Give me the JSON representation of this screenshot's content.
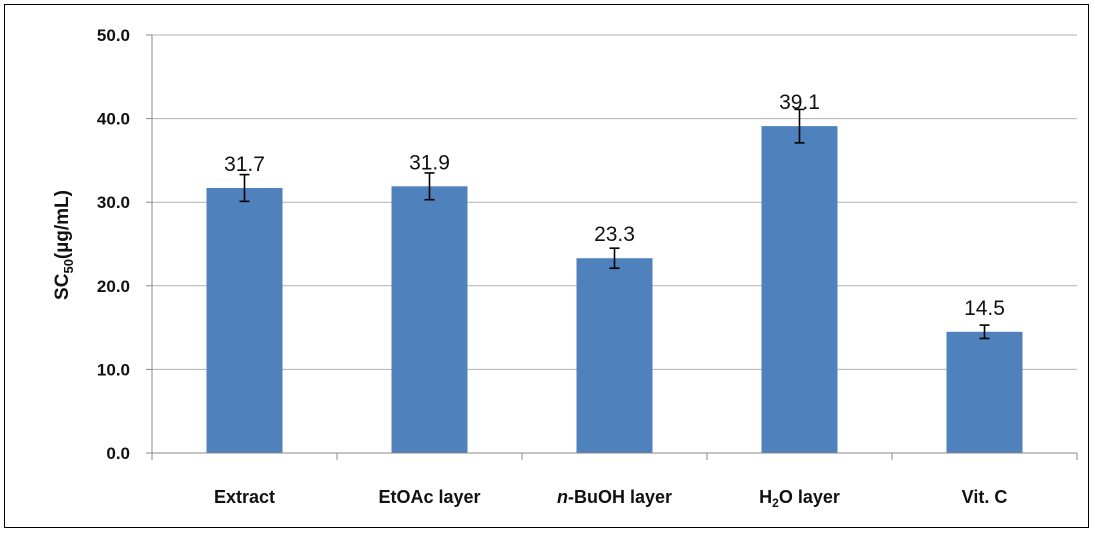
{
  "chart_data": {
    "type": "bar",
    "ylabel": {
      "main": "SC",
      "sub": "50",
      "unit": "(µg/mL)"
    },
    "categories": [
      {
        "label": "Extract"
      },
      {
        "label": "EtOAc layer"
      },
      {
        "italic_prefix": "n",
        "label": "-BuOH layer"
      },
      {
        "label": "H",
        "sub": "2",
        "label_suffix": "O layer"
      },
      {
        "label": "Vit. C"
      }
    ],
    "values": [
      31.7,
      31.9,
      23.3,
      39.1,
      14.5
    ],
    "value_labels": [
      "31.7",
      "31.9",
      "23.3",
      "39.1",
      "14.5"
    ],
    "errors": [
      1.6,
      1.6,
      1.2,
      2.0,
      0.8
    ],
    "ylim": [
      0,
      50
    ],
    "yticks": [
      "0.0",
      "10.0",
      "20.0",
      "30.0",
      "40.0",
      "50.0"
    ],
    "grid": true,
    "bar_color": "#4f81bd"
  }
}
